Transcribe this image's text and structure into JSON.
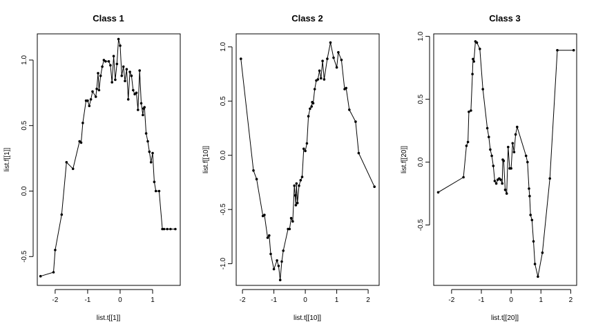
{
  "chart_data": [
    {
      "type": "line",
      "title": "Class 1",
      "xlabel": "list.t[[1]]",
      "ylabel": "list.f[[1]]",
      "xlim": [
        -2.55,
        1.85
      ],
      "ylim": [
        -0.72,
        1.2
      ],
      "xticks": [
        -2,
        -1,
        0,
        1
      ],
      "yticks": [
        -0.5,
        0.0,
        0.5,
        1.0
      ],
      "x": [
        -2.45,
        -2.05,
        -2.0,
        -1.8,
        -1.65,
        -1.45,
        -1.25,
        -1.2,
        -1.15,
        -1.05,
        -1.0,
        -0.95,
        -0.9,
        -0.85,
        -0.75,
        -0.72,
        -0.68,
        -0.65,
        -0.6,
        -0.55,
        -0.5,
        -0.45,
        -0.35,
        -0.3,
        -0.25,
        -0.2,
        -0.15,
        -0.1,
        -0.05,
        0.0,
        0.05,
        0.1,
        0.15,
        0.2,
        0.25,
        0.3,
        0.35,
        0.4,
        0.45,
        0.5,
        0.55,
        0.6,
        0.65,
        0.7,
        0.72,
        0.75,
        0.8,
        0.85,
        0.9,
        0.95,
        1.0,
        1.05,
        1.1,
        1.2,
        1.3,
        1.35,
        1.45,
        1.55,
        1.7
      ],
      "y": [
        -0.65,
        -0.62,
        -0.45,
        -0.18,
        0.22,
        0.17,
        0.38,
        0.37,
        0.52,
        0.69,
        0.69,
        0.65,
        0.7,
        0.76,
        0.72,
        0.78,
        0.9,
        0.77,
        0.88,
        0.95,
        1.0,
        0.99,
        0.99,
        0.96,
        0.83,
        1.03,
        0.85,
        0.97,
        1.16,
        1.11,
        0.88,
        0.95,
        0.84,
        0.93,
        0.7,
        0.91,
        0.88,
        0.77,
        0.74,
        0.75,
        0.62,
        0.92,
        0.67,
        0.58,
        0.63,
        0.64,
        0.44,
        0.38,
        0.3,
        0.22,
        0.29,
        0.07,
        0.0,
        0.0,
        -0.29,
        -0.29,
        -0.29,
        -0.29,
        -0.29
      ]
    },
    {
      "type": "line",
      "title": "Class 2",
      "xlabel": "list.t[[10]]",
      "ylabel": "list.f[[10]]",
      "xlim": [
        -2.2,
        2.35
      ],
      "ylim": [
        -1.2,
        1.12
      ],
      "xticks": [
        -2,
        -1,
        0,
        1,
        2
      ],
      "yticks": [
        -1.0,
        -0.5,
        0.0,
        0.5,
        1.0
      ],
      "x": [
        -2.05,
        -1.65,
        -1.55,
        -1.35,
        -1.3,
        -1.2,
        -1.15,
        -1.1,
        -1.0,
        -0.9,
        -0.85,
        -0.8,
        -0.75,
        -0.7,
        -0.55,
        -0.5,
        -0.45,
        -0.4,
        -0.35,
        -0.32,
        -0.3,
        -0.28,
        -0.25,
        -0.2,
        -0.15,
        -0.1,
        -0.05,
        0.0,
        0.05,
        0.1,
        0.15,
        0.2,
        0.22,
        0.25,
        0.3,
        0.35,
        0.4,
        0.45,
        0.5,
        0.55,
        0.6,
        0.7,
        0.8,
        0.9,
        1.0,
        1.05,
        1.15,
        1.25,
        1.3,
        1.4,
        1.6,
        1.7,
        2.2
      ],
      "y": [
        0.89,
        -0.14,
        -0.22,
        -0.56,
        -0.55,
        -0.76,
        -0.74,
        -0.91,
        -1.05,
        -0.97,
        -1.02,
        -1.15,
        -0.98,
        -0.88,
        -0.68,
        -0.68,
        -0.58,
        -0.61,
        -0.28,
        -0.37,
        -0.46,
        -0.26,
        -0.44,
        -0.28,
        -0.23,
        -0.2,
        0.06,
        0.04,
        0.11,
        0.36,
        0.43,
        0.45,
        0.49,
        0.48,
        0.61,
        0.69,
        0.7,
        0.78,
        0.71,
        0.87,
        0.7,
        0.89,
        1.04,
        0.9,
        0.81,
        0.95,
        0.88,
        0.61,
        0.62,
        0.42,
        0.31,
        0.02,
        -0.29
      ]
    },
    {
      "type": "line",
      "title": "Class 3",
      "xlabel": "list.t[[20]]",
      "ylabel": "list.f[[20]]",
      "xlim": [
        -2.6,
        2.2
      ],
      "ylim": [
        -0.98,
        1.02
      ],
      "xticks": [
        -2,
        -1,
        0,
        1,
        2
      ],
      "yticks": [
        -0.5,
        0.0,
        0.5,
        1.0
      ],
      "x": [
        -2.45,
        -1.6,
        -1.5,
        -1.45,
        -1.42,
        -1.35,
        -1.3,
        -1.28,
        -1.25,
        -1.2,
        -1.15,
        -1.05,
        -0.95,
        -0.8,
        -0.75,
        -0.7,
        -0.65,
        -0.6,
        -0.55,
        -0.5,
        -0.45,
        -0.4,
        -0.35,
        -0.3,
        -0.28,
        -0.25,
        -0.2,
        -0.15,
        -0.1,
        -0.05,
        0.0,
        0.05,
        0.1,
        0.15,
        0.2,
        0.5,
        0.55,
        0.6,
        0.62,
        0.65,
        0.7,
        0.75,
        0.8,
        0.9,
        1.05,
        1.3,
        1.55,
        2.1
      ],
      "y": [
        -0.24,
        -0.12,
        0.13,
        0.16,
        0.4,
        0.41,
        0.7,
        0.82,
        0.8,
        0.96,
        0.95,
        0.9,
        0.58,
        0.27,
        0.2,
        0.1,
        0.05,
        -0.03,
        -0.15,
        -0.17,
        -0.14,
        -0.13,
        -0.14,
        -0.17,
        0.02,
        0.01,
        -0.22,
        -0.25,
        0.12,
        -0.05,
        -0.05,
        0.15,
        0.08,
        0.22,
        0.28,
        0.05,
        0.0,
        -0.21,
        -0.27,
        -0.42,
        -0.46,
        -0.63,
        -0.81,
        -0.91,
        -0.72,
        -0.13,
        0.89,
        0.89
      ]
    }
  ]
}
